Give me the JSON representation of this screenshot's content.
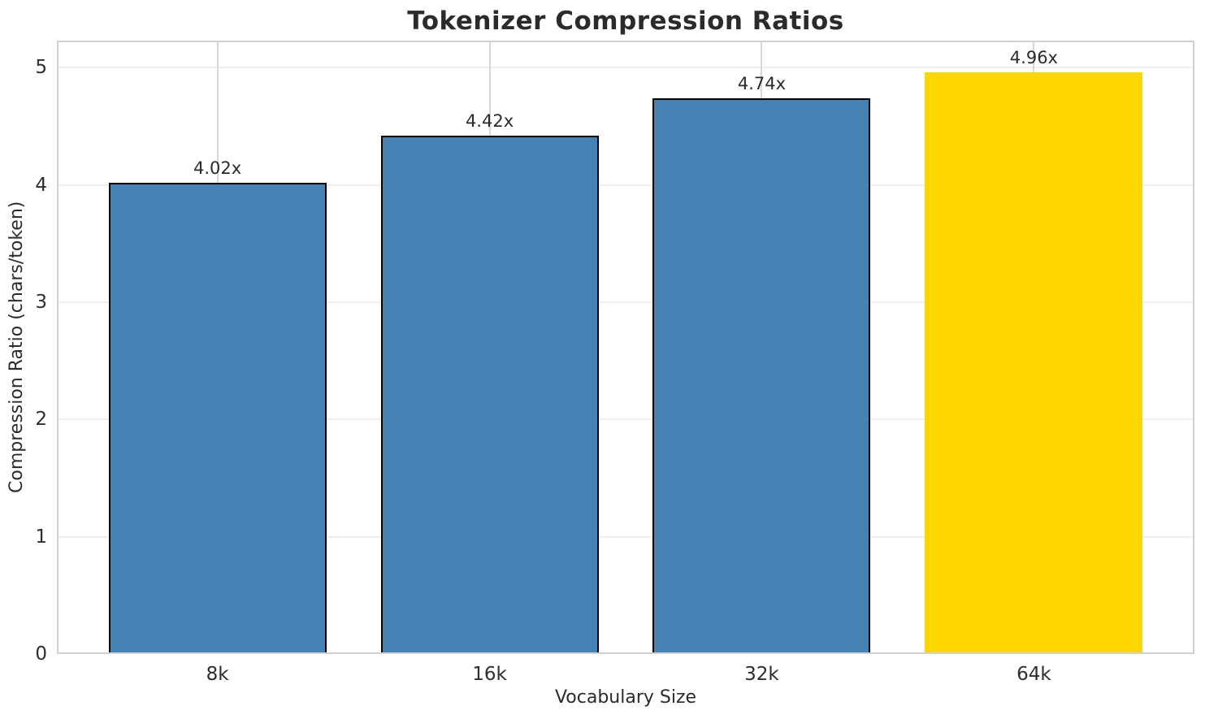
{
  "chart_data": {
    "type": "bar",
    "title": "Tokenizer Compression Ratios",
    "xlabel": "Vocabulary Size",
    "ylabel": "Compression Ratio (chars/token)",
    "categories": [
      "8k",
      "16k",
      "32k",
      "64k"
    ],
    "values": [
      4.02,
      4.42,
      4.74,
      4.96
    ],
    "bar_labels": [
      "4.02x",
      "4.42x",
      "4.74x",
      "4.96x"
    ],
    "bar_colors": [
      "#4682b4",
      "#4682b4",
      "#4682b4",
      "#ffd700"
    ],
    "bar_edge_colors": [
      "#000000",
      "#000000",
      "#000000",
      "none"
    ],
    "highlighted_category": "64k",
    "y_ticks": [
      "0",
      "1",
      "2",
      "3",
      "4",
      "5"
    ],
    "ylim": [
      0,
      5.23
    ],
    "grid": "both",
    "legend_position": "none"
  },
  "style_colors": {
    "background": "#ffffff",
    "spine": "#d0d0d0",
    "grid_horizontal": "#efefef",
    "grid_vertical": "#d8d8d8",
    "text": "#2b2b2b"
  }
}
